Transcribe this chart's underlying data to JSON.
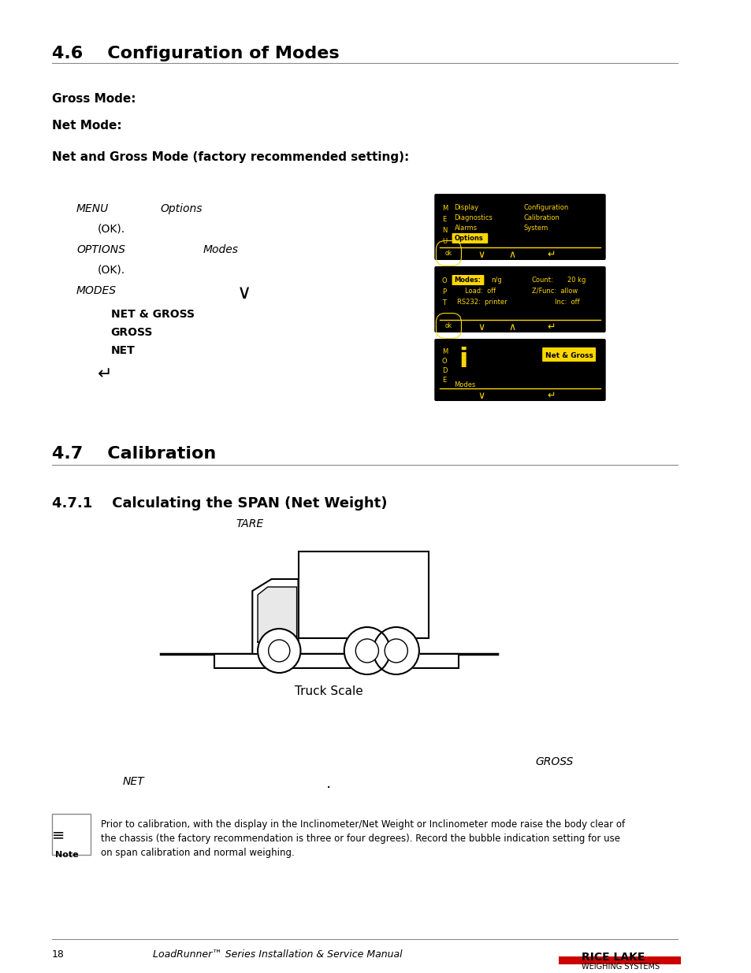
{
  "title_46": "4.6    Configuration of Modes",
  "title_47": "4.7    Calibration",
  "title_471": "4.7.1    Calculating the SPAN (Net Weight)",
  "gross_mode_label": "Gross Mode:",
  "net_mode_label": "Net Mode:",
  "net_gross_label": "Net and Gross Mode (factory recommended setting):",
  "menu_steps": [
    "MENU          Options",
    "   (OK).",
    "OPTIONS                   Modes",
    "   (OK).",
    "MODES"
  ],
  "modes_list": [
    "NET & GROSS",
    "GROSS",
    "NET"
  ],
  "tare_label": "TARE",
  "truck_scale_label": "Truck Scale",
  "gross_label": "GROSS",
  "net_label": "NET",
  "note_text": "Prior to calibration, with the display in the Inclinometer/Net Weight or Inclinometer mode raise the body clear of\nthe chassis (the factory recommendation is three or four degrees). Record the bubble indication setting for use\non span calibration and normal weighing.",
  "footer_page": "18",
  "footer_manual": "LoadRunner™ Series Installation & Service Manual",
  "bg_color": "#ffffff",
  "text_color": "#000000",
  "yellow_color": "#FFD700",
  "screen_bg": "#000000",
  "screen_text": "#FFD700"
}
